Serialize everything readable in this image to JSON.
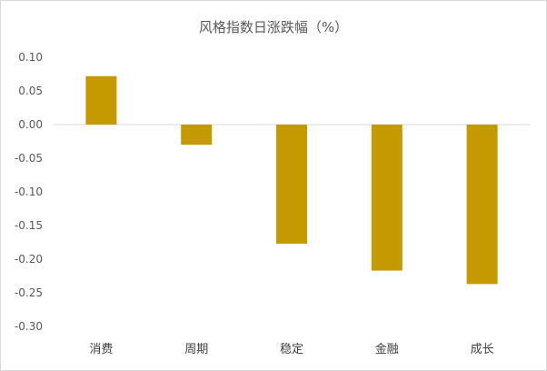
{
  "chart_data": {
    "type": "bar",
    "title": "风格指数日涨跌幅（%）",
    "categories": [
      "消费",
      "周期",
      "稳定",
      "金融",
      "成长"
    ],
    "values": [
      0.072,
      -0.03,
      -0.177,
      -0.217,
      -0.237
    ],
    "ylim": [
      -0.3,
      0.1
    ],
    "yticks": [
      "0.10",
      "0.05",
      "0.00",
      "-0.05",
      "-0.10",
      "-0.15",
      "-0.20",
      "-0.25",
      "-0.30"
    ],
    "grid": false,
    "bar_color": "#C49A00",
    "axis_color": "#d9d9d9"
  }
}
